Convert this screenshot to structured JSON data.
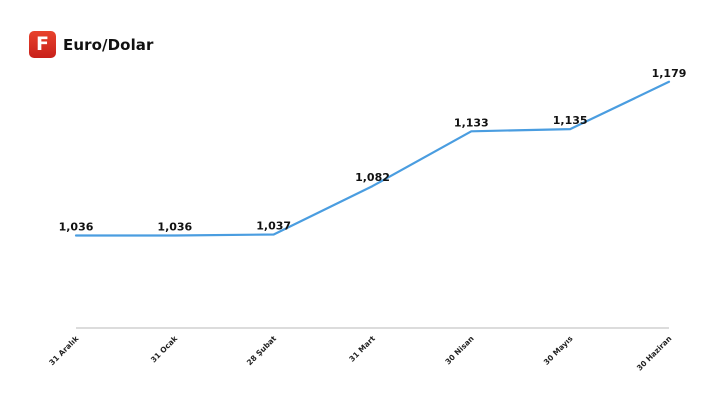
{
  "header": {
    "logo_letter": "F",
    "title": "Euro/Dolar"
  },
  "colors": {
    "line": "#4a9de0",
    "axis": "#b8b8b8",
    "logo": "#d9301f"
  },
  "chart_data": {
    "type": "line",
    "title": "Euro/Dolar",
    "xlabel": "",
    "ylabel": "",
    "grid": false,
    "categories": [
      "31 Aralık",
      "31 Ocak",
      "28 Şubat",
      "31 Mart",
      "30 Nisan",
      "30 Mayıs",
      "30 Haziran"
    ],
    "series": [
      {
        "values": [
          1.036,
          1.036,
          1.037,
          1.082,
          1.133,
          1.135,
          1.179
        ],
        "labels": [
          "1,036",
          "1,036",
          "1,037",
          "1,082",
          "1,133",
          "1,135",
          "1,179"
        ]
      }
    ],
    "ylim": [
      0.95,
      1.19
    ]
  }
}
